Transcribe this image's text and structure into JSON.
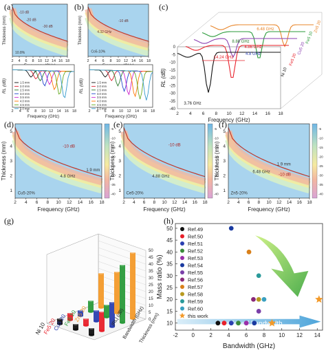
{
  "panel_labels": [
    "(a)",
    "(b)",
    "(c)",
    "(d)",
    "(e)",
    "(f)",
    "(g)",
    "(h)"
  ],
  "chart_data": [
    {
      "id": "a-top",
      "type": "heatmap",
      "xlabel": "Frequency (GHz)",
      "ylabel": "Thickness (mm)",
      "xticks": [
        "2",
        "4",
        "6",
        "8",
        "10",
        "12",
        "14",
        "16",
        "18"
      ],
      "annotations": [
        "-10 dB",
        "-20 dB",
        "-30 dB",
        "-40 dB",
        "10.8%"
      ]
    },
    {
      "id": "a-bottom",
      "type": "line",
      "xlabel": "Frequency (GHz)",
      "ylabel": "RL (dB)",
      "xticks": [
        "2",
        "4",
        "6",
        "8",
        "10",
        "12",
        "14",
        "16",
        "18"
      ],
      "legend": [
        "1.5 mm",
        "2.0 mm",
        "2.5 mm",
        "3.0 mm",
        "3.5 mm",
        "4.0 mm",
        "4.5 mm",
        "5.0 mm"
      ]
    },
    {
      "id": "b-top",
      "type": "heatmap",
      "xlabel": "Frequency (GHz)",
      "ylabel": "Thickness (mm)",
      "xticks": [
        "2",
        "4",
        "6",
        "8",
        "10",
        "12",
        "14",
        "16",
        "18"
      ],
      "annotations": [
        "-10 dB",
        "4.32 GHz",
        "Co5-10%"
      ]
    },
    {
      "id": "b-bottom",
      "type": "line",
      "xlabel": "Frequency (GHz)",
      "ylabel": "RL (dB)",
      "xticks": [
        "2",
        "4",
        "6",
        "8",
        "10",
        "12",
        "14",
        "16",
        "18"
      ],
      "legend": [
        "1.5 mm",
        "2.0 mm",
        "2.5 mm",
        "3.0 mm",
        "3.5 mm",
        "4.0 mm",
        "4.5 mm",
        "5.0 mm"
      ]
    },
    {
      "id": "c",
      "type": "line",
      "xlabel": "Frequency (GHz)",
      "ylabel": "RL (dB)",
      "xticks": [
        "2",
        "4",
        "6",
        "8",
        "10",
        "12",
        "14",
        "16",
        "18"
      ],
      "yticks": [
        "0",
        "-5",
        "-10",
        "-15",
        "-20",
        "-25",
        "-30",
        "-35",
        "-40"
      ],
      "ylim": [
        -40,
        0
      ],
      "series_labels": [
        "Zn5 20",
        "Fe5 10",
        "Cu5 20",
        "Fe5 20",
        "Ni 10"
      ],
      "annotations": [
        "6.48 GHz",
        "8.88 GHz",
        "4.86 GHz",
        "4.8 GHz",
        "14.24 GHz",
        "3.76 GHz"
      ]
    },
    {
      "id": "d",
      "type": "heatmap",
      "xlabel": "Frequency (GHz)",
      "ylabel": "Thickness (mm)",
      "xticks": [
        "2",
        "4",
        "6",
        "8",
        "10",
        "12",
        "14",
        "16",
        "18"
      ],
      "yticks": [
        "1",
        "2",
        "3",
        "4",
        "5"
      ],
      "colorbar": [
        "-5",
        "-10",
        "-15",
        "-20",
        "-25",
        "-30",
        "-35",
        "-40"
      ],
      "annotations": [
        "-10 dB",
        "4.8 GHz",
        "1.9 mm",
        "Cu5-20%"
      ]
    },
    {
      "id": "e",
      "type": "heatmap",
      "xlabel": "Frequency (GHz)",
      "ylabel": "Thickness (mm)",
      "xticks": [
        "2",
        "4",
        "6",
        "8",
        "10",
        "12",
        "14",
        "16",
        "18"
      ],
      "yticks": [
        "1",
        "2",
        "3",
        "4",
        "5"
      ],
      "colorbar": [
        "-5",
        "-10",
        "-15",
        "-20",
        "-25",
        "-30",
        "-35",
        "-40"
      ],
      "annotations": [
        "-10 dB",
        "4.88 GHz",
        "Ce5-20%"
      ]
    },
    {
      "id": "f",
      "type": "heatmap",
      "xlabel": "Frequency (GHz)",
      "ylabel": "Thickness (mm)",
      "xticks": [
        "2",
        "4",
        "6",
        "8",
        "10",
        "12",
        "14",
        "16",
        "18"
      ],
      "yticks": [
        "1",
        "2",
        "3",
        "4",
        "5"
      ],
      "colorbar": [
        "-5",
        "-10",
        "-15",
        "-20",
        "-25",
        "-30",
        "-35",
        "-40"
      ],
      "annotations": [
        "1.9 mm",
        "6.48 GHz",
        "-10 dB",
        "Zn5-20%"
      ]
    },
    {
      "id": "g",
      "type": "bar",
      "categories": [
        "Zn5 20",
        "Fe5 10",
        "Cu5 20",
        "Fe5 20",
        "Ni 10"
      ],
      "metrics": [
        "|RL| (dB)",
        "Bandwidth (GHz)",
        "Thickness (mm)"
      ],
      "zticks": [
        "0",
        "5",
        "10",
        "15",
        "20",
        "25",
        "30",
        "35",
        "40",
        "45",
        "50"
      ],
      "series": [
        {
          "values": [
            25,
            8,
            4,
            5,
            4
          ]
        },
        {
          "values": [
            30,
            9,
            8,
            5,
            4
          ]
        },
        {
          "values": [
            48,
            42,
            18,
            14,
            5
          ]
        }
      ]
    },
    {
      "id": "h",
      "type": "scatter",
      "xlabel": "Bandwidth (GHz)",
      "ylabel": "Mass ratio (%)",
      "xticks": [
        "-2",
        "0",
        "2",
        "4",
        "6",
        "8",
        "10",
        "12",
        "14"
      ],
      "yticks": [
        "10",
        "15",
        "20",
        "25",
        "30",
        "35",
        "40",
        "45",
        "50"
      ],
      "xlim": [
        -2,
        14.6
      ],
      "ylim": [
        7,
        52
      ],
      "legend": [
        "Ref.49",
        "Ref.50",
        "Ref.51",
        "Ref.52",
        "Ref.53",
        "Ref.54",
        "Ref.55",
        "Ref.56",
        "Ref.57",
        "Ref.58",
        "Ref.59",
        "Ref.60",
        "this work"
      ],
      "colors": [
        "#111111",
        "#e8202a",
        "#2a3fb0",
        "#3a8a3a",
        "#9b2fa8",
        "#1a3aa0",
        "#7a3fa8",
        "#8a2a7a",
        "#d9801a",
        "#b89a20",
        "#2a9a9a",
        "#3aa0c0",
        "#f39a2a"
      ],
      "points": [
        {
          "x": 2.8,
          "y": 10,
          "ref": 0
        },
        {
          "x": 3.5,
          "y": 10,
          "ref": 1
        },
        {
          "x": 4.3,
          "y": 10,
          "ref": 2
        },
        {
          "x": 5.1,
          "y": 10,
          "ref": 3
        },
        {
          "x": 6.0,
          "y": 10,
          "ref": 4
        },
        {
          "x": 6.9,
          "y": 10,
          "ref": 5
        },
        {
          "x": 4.3,
          "y": 50,
          "ref": 5
        },
        {
          "x": 6.3,
          "y": 40,
          "ref": 8
        },
        {
          "x": 6.8,
          "y": 20,
          "ref": 7
        },
        {
          "x": 7.4,
          "y": 30,
          "ref": 10
        },
        {
          "x": 7.4,
          "y": 20,
          "ref": 9
        },
        {
          "x": 8.0,
          "y": 20,
          "ref": 11
        },
        {
          "x": 7.4,
          "y": 15,
          "ref": 6
        },
        {
          "x": 8.9,
          "y": 10,
          "ref": 12,
          "star": true
        },
        {
          "x": 14.2,
          "y": 20,
          "ref": 12,
          "star": true
        }
      ],
      "annotations": [
        "Lower content",
        "Broadened bandwidth"
      ]
    }
  ]
}
